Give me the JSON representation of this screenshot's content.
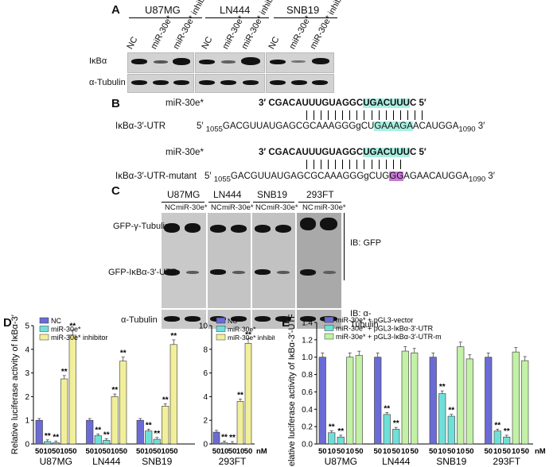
{
  "panels": {
    "A": "A",
    "B": "B",
    "C": "C",
    "D": "D",
    "E": "E"
  },
  "panel_a": {
    "groups": [
      "U87MG",
      "LN444",
      "SNB19"
    ],
    "lanes": [
      [
        "NC",
        "miR-30e*",
        "miR-30e* inhibitor"
      ],
      [
        "NC",
        "miR-30e*",
        "miR-30e* inhibitor"
      ],
      [
        "NC",
        "miR-30e*",
        "miR-30e* inhibitor"
      ]
    ],
    "row_labels": [
      "IκBα",
      "α-Tubulin"
    ]
  },
  "panel_b": {
    "mir_label_1": "miR-30e*",
    "mir_seq_1": "3′ CGACAUUUGUAGGC",
    "mir_seq_1_hl": "UGACUUU",
    "mir_seq_1_end": "C 5′",
    "utr_label": "IκBα-3′-UTR",
    "utr_seq_pre": "5′ ",
    "utr_pos_start": "1055",
    "utr_seq_1": "GACGUUAUGAGCGCAAAGGGgCU",
    "utr_seq_1_hl": "GAAAGA",
    "utr_seq_1_end": "ACAUGGA",
    "utr_pos_end": "1090",
    "utr_seq_post": " 3′",
    "mir_label_2": "miR-30e*",
    "utr_mut_label": "IκBα-3′-UTR-mutant",
    "mut_seq_a": "GACGUUAUGAGCGCAAAGGGgCUG",
    "mut_seq_hl": "GG",
    "mut_seq_b": "AGAACAUGGA"
  },
  "panel_c": {
    "groups": [
      "U87MG",
      "LN444",
      "SNB19",
      "293FT"
    ],
    "lanes": [
      "NC",
      "miR-30e*"
    ],
    "row_labels": [
      "GFP-γ-Tubulin",
      "GFP-IκBα-3′-UTR",
      "α-Tubulin"
    ],
    "ib_gfp": "IB: GFP",
    "ib_tub": "IB: α-Tubulin"
  },
  "panel_d": {
    "ylabel": "Relative luciferase activity of IκBα-3′-UTR",
    "legend": [
      "NC",
      "miR-30e*",
      "miR-30e* inhibitor"
    ],
    "nm_unit": "nM",
    "sig_mark": "**"
  },
  "panel_e": {
    "ylabel": "Relative luciferase activity of IκBα-3′-UTR",
    "legend": [
      "miR-30e* + pGL3-vector",
      "miR-30e* + pGL3-IκBα-3′-UTR",
      "miR-30e* + pGL3-IκBα-3′-UTR-m"
    ],
    "nm_unit": "nM",
    "sig_mark": "**"
  },
  "colors": {
    "nc": "#6b6bd6",
    "mir": "#6fe0d9",
    "inh": "#f1ef9a",
    "mutc": "#c3f1a6"
  },
  "chart_data": [
    {
      "type": "bar",
      "title": "",
      "ylabel": "Relative luciferase activity of IκBα-3′-UTR",
      "ylim": [
        0,
        5
      ],
      "yticks": [
        0,
        1,
        2,
        3,
        4,
        5
      ],
      "groups": [
        "U87MG",
        "LN444",
        "SNB19"
      ],
      "x_tick_labels": [
        "50",
        "10",
        "50",
        "10",
        "50"
      ],
      "series": [
        {
          "name": "NC",
          "values": [
            1.0,
            1.0,
            1.0
          ]
        },
        {
          "name": "miR-30e*",
          "values": [
            [
              0.1,
              0.05
            ],
            [
              0.35,
              0.15
            ],
            [
              0.55,
              0.2
            ]
          ]
        },
        {
          "name": "miR-30e* inhibitor",
          "values": [
            [
              2.75,
              4.6
            ],
            [
              2.0,
              3.5
            ],
            [
              1.6,
              4.2
            ]
          ]
        }
      ],
      "significance": "**",
      "legend": "top-left"
    },
    {
      "type": "bar",
      "ylabel": "",
      "ylim": [
        0,
        10
      ],
      "yticks": [
        0,
        2,
        4,
        6,
        8,
        10
      ],
      "groups": [
        "293FT"
      ],
      "x_tick_labels": [
        "50",
        "10",
        "50",
        "10",
        "50"
      ],
      "series": [
        {
          "name": "NC",
          "values": [
            1.0
          ]
        },
        {
          "name": "miR-30e*",
          "values": [
            [
              0.1,
              0.05
            ]
          ]
        },
        {
          "name": "miR-30e* inhibitor",
          "values": [
            [
              3.6,
              8.5
            ]
          ]
        }
      ],
      "significance": "**",
      "legend": "top-left"
    },
    {
      "type": "bar",
      "ylabel": "Relative luciferase activity of IκBα-3′-UTR",
      "ylim": [
        0,
        1.4
      ],
      "yticks": [
        0,
        0.2,
        0.4,
        0.6,
        0.8,
        1.0,
        1.2,
        1.4
      ],
      "groups": [
        "U87MG",
        "LN444",
        "SNB19",
        "293FT"
      ],
      "x_tick_labels": [
        "50",
        "10",
        "50",
        "10",
        "50"
      ],
      "series": [
        {
          "name": "miR-30e* + pGL3-vector",
          "values": [
            1.0,
            1.0,
            1.0,
            1.0
          ]
        },
        {
          "name": "miR-30e* + pGL3-IκBα-3′-UTR",
          "values": [
            [
              0.13,
              0.08
            ],
            [
              0.34,
              0.17
            ],
            [
              0.58,
              0.32
            ],
            [
              0.15,
              0.08
            ]
          ]
        },
        {
          "name": "miR-30e* + pGL3-IκBα-3′-UTR-m",
          "values": [
            [
              1.0,
              1.02
            ],
            [
              1.07,
              1.05
            ],
            [
              1.12,
              0.98
            ],
            [
              1.06,
              0.96
            ]
          ]
        }
      ],
      "significance": "**",
      "legend": "top-left"
    }
  ]
}
